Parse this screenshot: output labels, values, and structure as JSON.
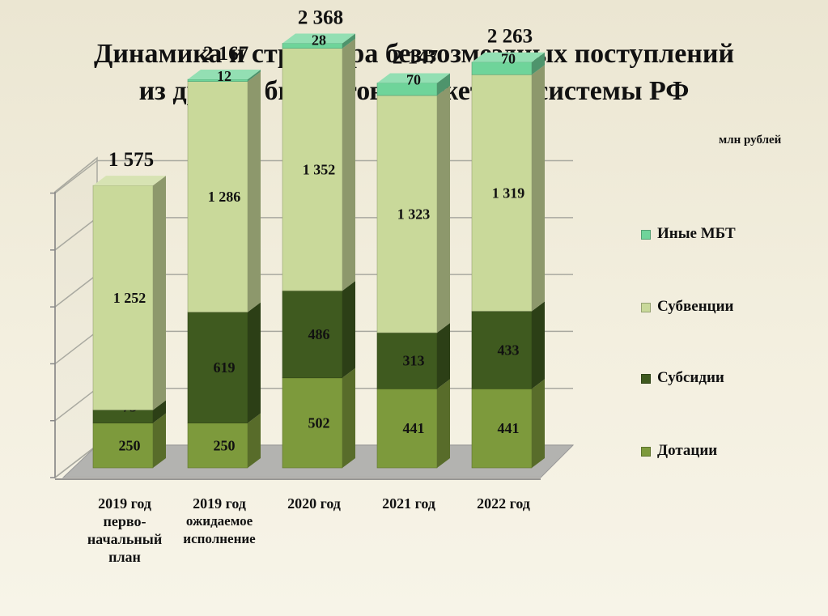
{
  "title_line1": "Динамика и структура безвозмездных поступлений",
  "title_line2": "из других бюджетов бюджетной системы РФ",
  "units": "млн рублей",
  "chart_data": {
    "type": "bar",
    "stacked": true,
    "three_d": true,
    "categories": [
      "2019 год перво- начальный план",
      "2019 год ожидаемое исполнение",
      "2020 год",
      "2021 год",
      "2022 год"
    ],
    "category_lines": [
      [
        "2019 год",
        "перво-",
        "начальный",
        "план"
      ],
      [
        "2019 год",
        "ожидаемое",
        "исполнение"
      ],
      [
        "2020 год"
      ],
      [
        "2021 год"
      ],
      [
        "2022 год"
      ]
    ],
    "series": [
      {
        "name": "Дотации",
        "values": [
          250,
          250,
          502,
          441,
          441
        ],
        "labels": [
          "250",
          "250",
          "502",
          "441",
          "441"
        ],
        "color": "#7d9a3c"
      },
      {
        "name": "Субсидии",
        "values": [
          73,
          619,
          486,
          313,
          433
        ],
        "labels": [
          "73",
          "619",
          "486",
          "313",
          "433"
        ],
        "color": "#3f5a1f"
      },
      {
        "name": "Субвенции",
        "values": [
          1252,
          1286,
          1352,
          1323,
          1319
        ],
        "labels": [
          "1 252",
          "1 286",
          "1 352",
          "1 323",
          "1 319"
        ],
        "color": "#c9d99a"
      },
      {
        "name": "Иные МБТ",
        "values": [
          0,
          12,
          28,
          70,
          70
        ],
        "labels": [
          "",
          "12",
          "28",
          "70",
          "70"
        ],
        "color": "#6fd49a"
      }
    ],
    "totals": [
      "1 575",
      "2 167",
      "2 368",
      "2 147",
      "2 263"
    ],
    "legend_order": [
      "Иные МБТ",
      "Субвенции",
      "Субсидии",
      "Дотации"
    ],
    "legend_position": "right",
    "grid": true
  }
}
